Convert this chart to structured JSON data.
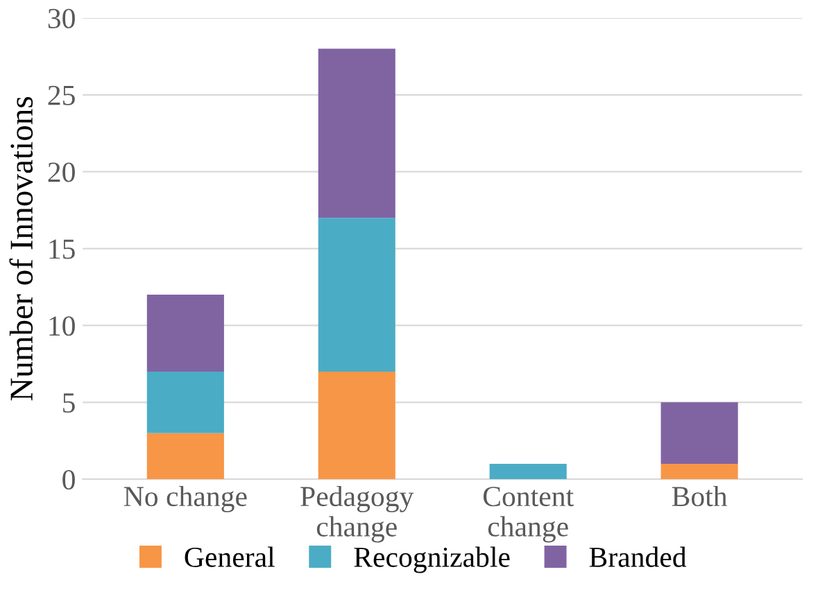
{
  "chart_data": {
    "type": "bar",
    "stacked": true,
    "ylabel": "Number of Innovations",
    "categories": [
      "No change",
      "Pedagogy change",
      "Content change",
      "Both"
    ],
    "series": [
      {
        "name": "General",
        "color": "#f79646",
        "values": [
          3,
          7,
          0,
          1
        ]
      },
      {
        "name": "Recognizable",
        "color": "#4bacc6",
        "values": [
          4,
          10,
          1,
          0
        ]
      },
      {
        "name": "Branded",
        "color": "#8064a2",
        "values": [
          5,
          11,
          0,
          4
        ]
      }
    ],
    "ylim": [
      0,
      30
    ],
    "yticks": [
      0,
      5,
      10,
      15,
      20,
      25,
      30
    ],
    "grid": "y",
    "legend": "bottom"
  }
}
